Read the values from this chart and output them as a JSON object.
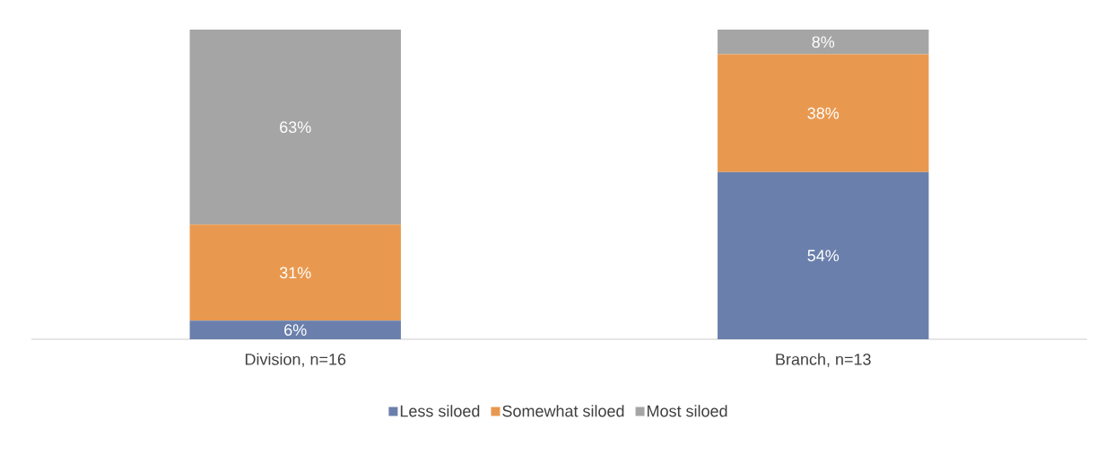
{
  "chart_data": {
    "type": "bar",
    "stacked": true,
    "categories": [
      "Division, n=16",
      "Branch, n=13"
    ],
    "series": [
      {
        "name": "Less siloed",
        "color": "#6a7fab",
        "values": [
          6,
          54
        ],
        "value_labels": [
          "6%",
          "54%"
        ]
      },
      {
        "name": "Somewhat siloed",
        "color": "#e9994f",
        "values": [
          31,
          38
        ],
        "value_labels": [
          "31%",
          "38%"
        ]
      },
      {
        "name": "Most siloed",
        "color": "#a5a5a5",
        "values": [
          63,
          8
        ],
        "value_labels": [
          "63%",
          "8%"
        ]
      }
    ],
    "ylim": [
      0,
      100
    ],
    "tick_labels": "x",
    "legend": "bottom"
  }
}
